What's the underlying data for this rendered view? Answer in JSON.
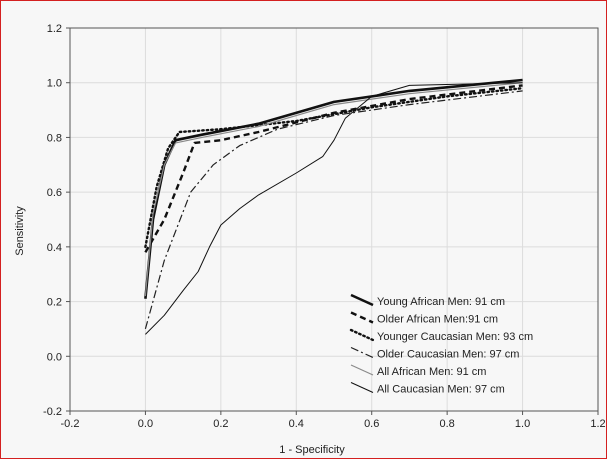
{
  "chart_data": {
    "type": "line",
    "title": "",
    "xlabel": "1 - Specificity",
    "ylabel": "Sensitivity",
    "xlim": [
      -0.2,
      1.2
    ],
    "ylim": [
      -0.2,
      1.2
    ],
    "xticks": [
      -0.2,
      0.0,
      0.2,
      0.4,
      0.6,
      0.8,
      1.0,
      1.2
    ],
    "yticks": [
      -0.2,
      0.0,
      0.2,
      0.4,
      0.6,
      0.8,
      1.0,
      1.2
    ],
    "xtick_labels": [
      "-0.2",
      "0.0",
      "0.2",
      "0.4",
      "0.6",
      "0.8",
      "1.0",
      "1.2"
    ],
    "ytick_labels": [
      "-0.2",
      "0.0",
      "0.2",
      "0.4",
      "0.6",
      "0.8",
      "1.0",
      "1.2"
    ],
    "grid": true,
    "legend_position": "bottom-right",
    "series": [
      {
        "name": "Young African Men: 91 cm",
        "style": "solid-thick",
        "x": [
          0.0,
          0.02,
          0.05,
          0.08,
          0.15,
          0.3,
          0.5,
          0.7,
          1.0
        ],
        "y": [
          0.21,
          0.5,
          0.7,
          0.79,
          0.81,
          0.85,
          0.93,
          0.97,
          1.01
        ]
      },
      {
        "name": "Older African Men:91 cm",
        "style": "dashed-thick",
        "x": [
          0.0,
          0.05,
          0.1,
          0.13,
          0.2,
          0.3,
          0.5,
          0.7,
          1.0
        ],
        "y": [
          0.38,
          0.5,
          0.67,
          0.78,
          0.79,
          0.82,
          0.89,
          0.94,
          0.99
        ]
      },
      {
        "name": "Younger Caucasian Men: 93 cm",
        "style": "dotted",
        "x": [
          0.0,
          0.03,
          0.06,
          0.09,
          0.2,
          0.4,
          0.6,
          0.8,
          1.0
        ],
        "y": [
          0.4,
          0.62,
          0.76,
          0.82,
          0.83,
          0.86,
          0.91,
          0.95,
          0.98
        ]
      },
      {
        "name": "Older Caucasian Men: 97 cm",
        "style": "dashdot",
        "x": [
          0.0,
          0.05,
          0.12,
          0.18,
          0.25,
          0.35,
          0.5,
          0.7,
          1.0
        ],
        "y": [
          0.1,
          0.35,
          0.6,
          0.7,
          0.77,
          0.83,
          0.88,
          0.92,
          0.97
        ]
      },
      {
        "name": "All African Men: 91 cm",
        "style": "solid-gray",
        "x": [
          0.0,
          0.02,
          0.05,
          0.08,
          0.15,
          0.3,
          0.5,
          0.7,
          1.0
        ],
        "y": [
          0.22,
          0.52,
          0.7,
          0.78,
          0.8,
          0.84,
          0.92,
          0.96,
          1.0
        ]
      },
      {
        "name": "All Caucasian Men: 97 cm",
        "style": "solid-thin",
        "x": [
          0.0,
          0.05,
          0.1,
          0.14,
          0.17,
          0.2,
          0.25,
          0.3,
          0.4,
          0.47,
          0.5,
          0.53,
          0.6,
          0.7,
          1.0
        ],
        "y": [
          0.08,
          0.15,
          0.24,
          0.31,
          0.4,
          0.48,
          0.54,
          0.59,
          0.67,
          0.73,
          0.79,
          0.87,
          0.95,
          0.99,
          1.0
        ]
      }
    ]
  }
}
